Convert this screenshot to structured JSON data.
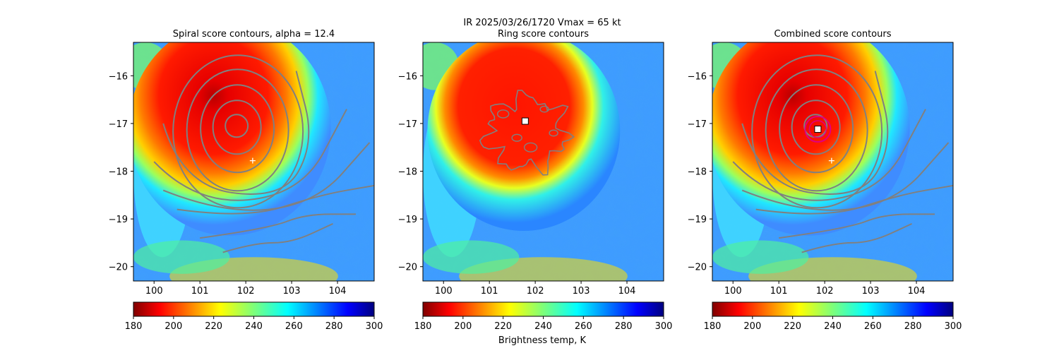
{
  "figure": {
    "suptitle_line1": "IR  2025/03/26/1720    Vmax = 65 kt",
    "colorbar_label": "Brightness temp, K"
  },
  "colorbar": {
    "colormap": "jet_r",
    "range": [
      180,
      300
    ],
    "ticks": [
      180,
      200,
      220,
      240,
      260,
      280,
      300
    ]
  },
  "chart_data": [
    {
      "type": "heatmap",
      "title": "Spiral score contours, alpha = 12.4",
      "xlim": [
        99.55,
        104.8
      ],
      "ylim": [
        -20.3,
        -15.3
      ],
      "xticks": [
        100,
        101,
        102,
        103,
        104
      ],
      "yticks": [
        -16,
        -17,
        -18,
        -19,
        -20
      ],
      "center_marker": {
        "symbol": "+",
        "x": 102.15,
        "y": -17.78
      },
      "contour_color": "#808080"
    },
    {
      "type": "heatmap",
      "title": "Ring score contours",
      "xlim": [
        99.55,
        104.8
      ],
      "ylim": [
        -20.3,
        -15.3
      ],
      "xticks": [
        100,
        101,
        102,
        103,
        104
      ],
      "yticks": [
        -16,
        -17,
        -18,
        -19,
        -20
      ],
      "center_marker": {
        "symbol": "square",
        "x": 101.78,
        "y": -16.95
      },
      "contour_color": "#808080"
    },
    {
      "type": "heatmap",
      "title": "Combined score contours",
      "xlim": [
        99.55,
        104.8
      ],
      "ylim": [
        -20.3,
        -15.3
      ],
      "xticks": [
        100,
        101,
        102,
        103,
        104
      ],
      "yticks": [
        -16,
        -17,
        -18,
        -19,
        -20
      ],
      "center_marker": {
        "symbol": "square",
        "x": 101.85,
        "y": -17.12
      },
      "spiral_marker": {
        "symbol": "+",
        "x": 102.15,
        "y": -17.78
      },
      "contour_color": "#808080",
      "max_ring_color": "#e0007e"
    }
  ]
}
